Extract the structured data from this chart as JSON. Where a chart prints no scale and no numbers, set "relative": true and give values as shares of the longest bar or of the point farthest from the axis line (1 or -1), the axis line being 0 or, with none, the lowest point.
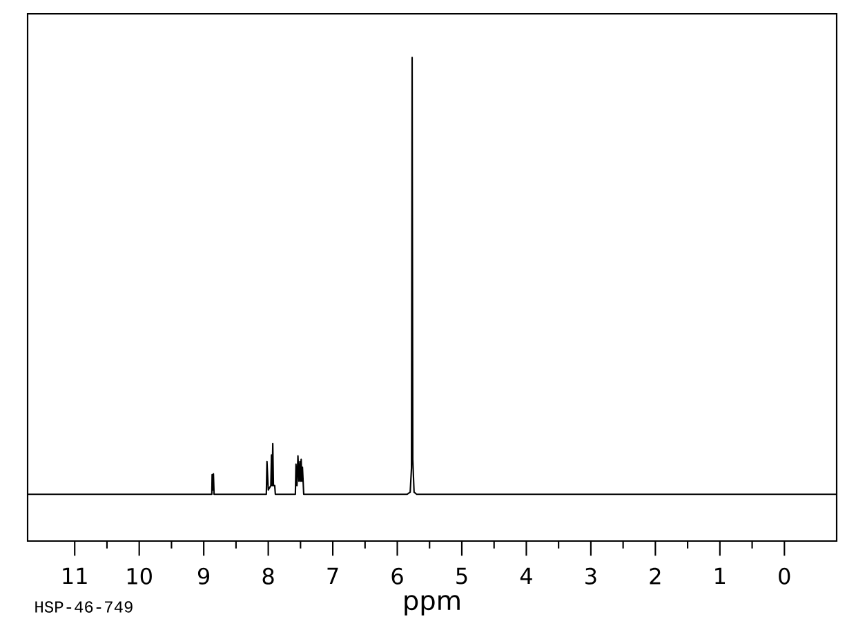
{
  "chart_data": {
    "type": "line",
    "relative": true,
    "xlabel": "ppm",
    "annotations": [
      "HSP-46-749"
    ],
    "xlim": [
      11.73,
      -0.81
    ],
    "xticks": [
      11,
      10,
      9,
      8,
      7,
      6,
      5,
      4,
      3,
      2,
      1,
      0
    ],
    "marker": "none",
    "line_style": "solid",
    "series": [
      {
        "color": "#000000",
        "x": [
          11.73,
          8.9,
          8.875,
          8.87,
          8.86,
          8.85,
          8.84,
          8.05,
          8.03,
          8.02,
          8.0,
          7.96,
          7.95,
          7.94,
          7.93,
          7.92,
          7.9,
          7.89,
          7.6,
          7.58,
          7.57,
          7.555,
          7.54,
          7.525,
          7.51,
          7.5,
          7.49,
          7.48,
          7.47,
          7.45,
          5.85,
          5.8,
          5.78,
          5.77,
          5.76,
          5.74,
          5.7,
          -0.81
        ],
        "values": [
          0,
          0,
          0,
          0.045,
          0.01,
          0.047,
          0,
          0,
          0,
          0.075,
          0.01,
          0.02,
          0.09,
          0.02,
          0.116,
          0.02,
          0.02,
          0,
          0,
          0,
          0.069,
          0.02,
          0.088,
          0.03,
          0.075,
          0.03,
          0.08,
          0.03,
          0.062,
          0,
          0,
          0.005,
          0.06,
          1,
          0.08,
          0.005,
          0,
          0
        ]
      }
    ]
  }
}
